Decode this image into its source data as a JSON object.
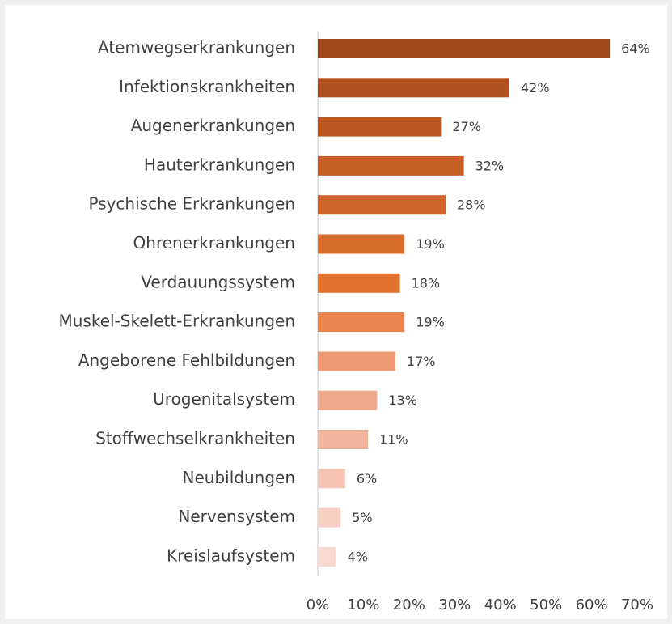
{
  "chart_data": {
    "type": "bar",
    "categories": [
      "Atemwegserkrankungen",
      "Infektionskrankheiten",
      "Augenerkrankungen",
      "Hauterkrankungen",
      "Psychische Erkrankungen",
      "Ohrenerkrankungen",
      "Verdauungssystem",
      "Muskel-Skelett-Erkrankungen",
      "Angeborene Fehlbildungen",
      "Urogenitalsystem",
      "Stoffwechselkrankheiten",
      "Neubildungen",
      "Nervensystem",
      "Kreislaufsystem"
    ],
    "values": [
      64,
      42,
      27,
      32,
      28,
      19,
      18,
      19,
      17,
      13,
      11,
      6,
      5,
      4
    ],
    "value_labels": [
      "64%",
      "42%",
      "27%",
      "32%",
      "28%",
      "19%",
      "18%",
      "19%",
      "17%",
      "13%",
      "11%",
      "6%",
      "5%",
      "4%"
    ],
    "colors": [
      "#9e4a1b",
      "#b0521e",
      "#bb5822",
      "#c45f26",
      "#cc6529",
      "#d86d2c",
      "#e2742f",
      "#ea8450",
      "#ee9a73",
      "#efa88a",
      "#f2b6a0",
      "#f4c3b3",
      "#f6cfc3",
      "#f8d9cf"
    ],
    "xlim": [
      0,
      70
    ],
    "xticks": [
      {
        "value": 0,
        "label": "0%"
      },
      {
        "value": 10,
        "label": "10%"
      },
      {
        "value": 20,
        "label": "20%"
      },
      {
        "value": 30,
        "label": "30%"
      },
      {
        "value": 40,
        "label": "40%"
      },
      {
        "value": 50,
        "label": "50%"
      },
      {
        "value": 60,
        "label": "60%"
      },
      {
        "value": 70,
        "label": "70%"
      }
    ],
    "grid": false
  }
}
